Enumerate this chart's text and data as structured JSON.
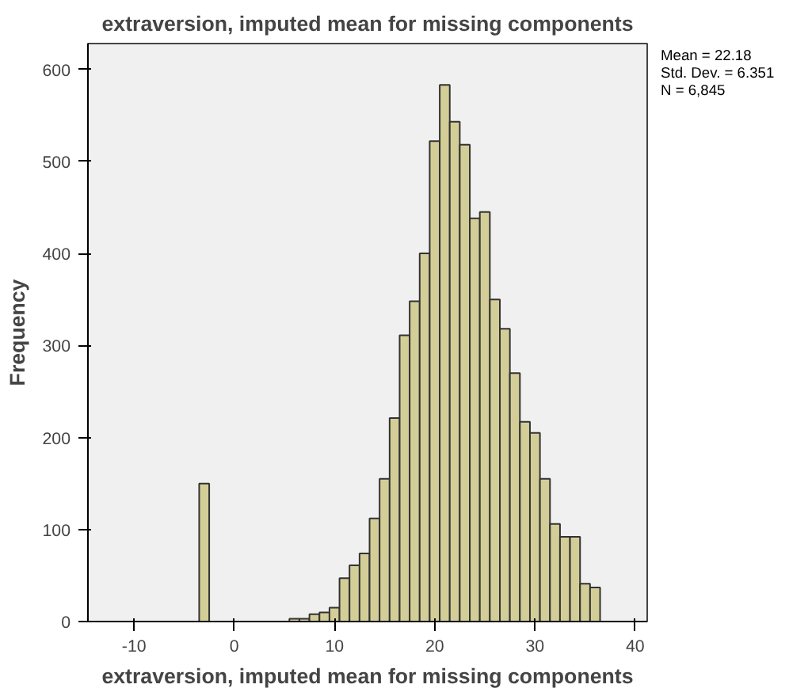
{
  "chart_data": {
    "type": "histogram",
    "title": "extraversion, imputed mean for missing components",
    "xlabel": "extraversion, imputed mean for missing components",
    "ylabel": "Frequency",
    "bins": [
      -3.5,
      -2.5,
      -1.5,
      -0.5,
      0.5,
      1.5,
      2.5,
      3.5,
      4.5,
      5.5,
      6.5,
      7.5,
      8.5,
      9.5,
      10.5,
      11.5,
      12.5,
      13.5,
      14.5,
      15.5,
      16.5,
      17.5,
      18.5,
      19.5,
      20.5,
      21.5,
      22.5,
      23.5,
      24.5,
      25.5,
      26.5,
      27.5,
      28.5,
      29.5,
      30.5,
      31.5,
      32.5,
      33.5,
      34.5,
      35.5,
      36.5
    ],
    "values": [
      150,
      0,
      0,
      0,
      0,
      0,
      0,
      0,
      0,
      3,
      3,
      8,
      10,
      15,
      47,
      61,
      74,
      112,
      155,
      221,
      311,
      348,
      400,
      522,
      583,
      543,
      518,
      438,
      445,
      350,
      318,
      270,
      217,
      205,
      155,
      106,
      92,
      92,
      41,
      37
    ],
    "color": "#d3ce97",
    "xlim": [
      -14.6,
      41.2
    ],
    "ylim": [
      0,
      628
    ],
    "xticks": [
      -10,
      0,
      10,
      20,
      30,
      40
    ],
    "yticks": [
      0,
      100,
      200,
      300,
      400,
      500,
      600
    ],
    "grid": false,
    "annotations": [
      "Mean = 22.18",
      "Std. Dev. = 6.351",
      "N = 6,845"
    ]
  }
}
